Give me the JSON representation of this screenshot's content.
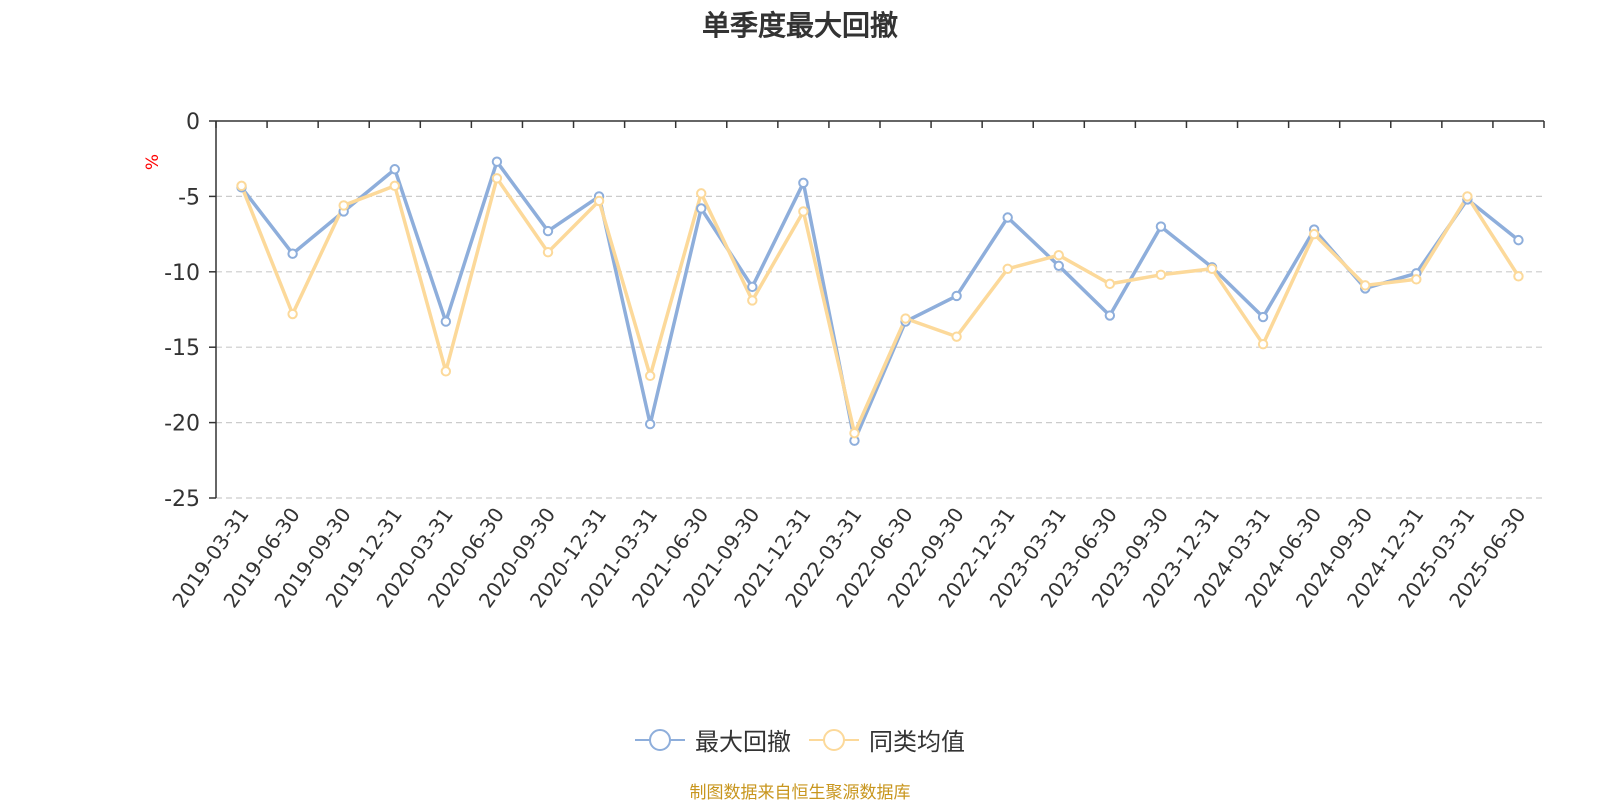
{
  "chart_data": {
    "type": "line",
    "title": "单季度最大回撤",
    "ylabel": "%",
    "ylim": [
      -25,
      0
    ],
    "yticks": [
      0,
      -5,
      -10,
      -15,
      -20,
      -25
    ],
    "grid": true,
    "legend_position": "bottom-center",
    "categories": [
      "2019-03-31",
      "2019-06-30",
      "2019-09-30",
      "2019-12-31",
      "2020-03-31",
      "2020-06-30",
      "2020-09-30",
      "2020-12-31",
      "2021-03-31",
      "2021-06-30",
      "2021-09-30",
      "2021-12-31",
      "2022-03-31",
      "2022-06-30",
      "2022-09-30",
      "2022-12-31",
      "2023-03-31",
      "2023-06-30",
      "2023-09-30",
      "2023-12-31",
      "2024-03-31",
      "2024-06-30",
      "2024-09-30",
      "2024-12-31",
      "2025-03-31",
      "2025-06-30"
    ],
    "series": [
      {
        "name": "最大回撤",
        "color": "#8eaedb",
        "values": [
          -4.4,
          -8.8,
          -6.0,
          -3.2,
          -13.3,
          -2.7,
          -7.3,
          -5.0,
          -20.1,
          -5.8,
          -11.0,
          -4.1,
          -21.2,
          -13.3,
          -11.6,
          -6.4,
          -9.6,
          -12.9,
          -7.0,
          -9.7,
          -13.0,
          -7.2,
          -11.1,
          -10.1,
          -5.2,
          -7.9
        ]
      },
      {
        "name": "同类均值",
        "color": "#fcd99a",
        "values": [
          -4.3,
          -12.8,
          -5.6,
          -4.3,
          -16.6,
          -3.8,
          -8.7,
          -5.3,
          -16.9,
          -4.8,
          -11.9,
          -6.0,
          -20.7,
          -13.1,
          -14.3,
          -9.8,
          -8.9,
          -10.8,
          -10.2,
          -9.8,
          -14.8,
          -7.5,
          -10.9,
          -10.5,
          -5.0,
          -10.3
        ]
      }
    ]
  },
  "source_note": "制图数据来自恒生聚源数据库",
  "colors": {
    "axis": "#333333",
    "grid": "#cccccc",
    "unit_label": "#ff0000",
    "source_note": "#c8961e"
  }
}
